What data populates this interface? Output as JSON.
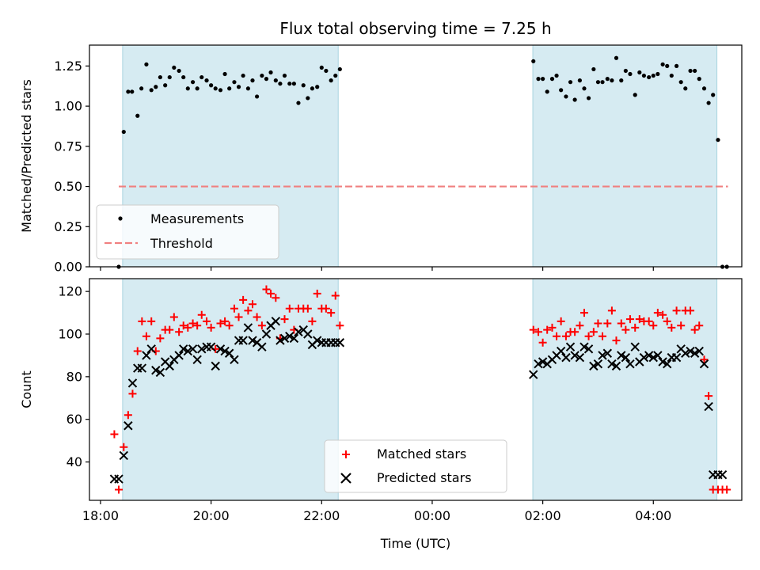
{
  "chart_data": [
    {
      "type": "scatter",
      "title": "Flux total observing time = 7.25 h",
      "xlabel": "",
      "ylabel": "Matched/Predicted stars",
      "xlim": [
        17.8,
        29.6
      ],
      "ylim": [
        0.0,
        1.38
      ],
      "yticks": [
        0.0,
        0.25,
        0.5,
        0.75,
        1.0,
        1.25
      ],
      "ytick_labels": [
        "0.00",
        "0.25",
        "0.50",
        "0.75",
        "1.00",
        "1.25"
      ],
      "xticks": [
        18,
        20,
        22,
        24,
        26,
        28
      ],
      "shaded_intervals": [
        [
          18.4,
          22.3
        ],
        [
          25.82,
          29.15
        ]
      ],
      "legend": {
        "position": "lower-left",
        "entries": [
          "Measurements",
          "Threshold"
        ]
      },
      "threshold": {
        "name": "Threshold",
        "value": 0.5,
        "x_range": [
          18.33,
          29.35
        ],
        "color": "#f08080"
      },
      "series": [
        {
          "name": "Measurements",
          "color": "#000000",
          "x": [
            18.33,
            18.42,
            18.5,
            18.57,
            18.67,
            18.74,
            18.83,
            18.92,
            19.0,
            19.08,
            19.17,
            19.25,
            19.33,
            19.42,
            19.5,
            19.58,
            19.67,
            19.75,
            19.83,
            19.92,
            20.0,
            20.08,
            20.17,
            20.25,
            20.33,
            20.42,
            20.5,
            20.58,
            20.67,
            20.75,
            20.83,
            20.92,
            21.0,
            21.08,
            21.17,
            21.25,
            21.33,
            21.42,
            21.5,
            21.58,
            21.67,
            21.75,
            21.83,
            21.92,
            22.0,
            22.08,
            22.17,
            22.25,
            22.33,
            25.83,
            25.92,
            26.0,
            26.08,
            26.17,
            26.25,
            26.33,
            26.42,
            26.5,
            26.58,
            26.67,
            26.75,
            26.83,
            26.92,
            27.0,
            27.08,
            27.17,
            27.25,
            27.33,
            27.42,
            27.5,
            27.58,
            27.67,
            27.75,
            27.83,
            27.92,
            28.0,
            28.08,
            28.17,
            28.25,
            28.33,
            28.42,
            28.5,
            28.58,
            28.67,
            28.75,
            28.83,
            28.92,
            29.0,
            29.08,
            29.17,
            29.25,
            29.33
          ],
          "y": [
            0.0,
            0.84,
            1.09,
            1.09,
            0.94,
            1.11,
            1.26,
            1.1,
            1.12,
            1.18,
            1.13,
            1.18,
            1.24,
            1.22,
            1.18,
            1.11,
            1.15,
            1.11,
            1.18,
            1.16,
            1.13,
            1.11,
            1.1,
            1.2,
            1.11,
            1.15,
            1.12,
            1.19,
            1.11,
            1.16,
            1.06,
            1.19,
            1.17,
            1.21,
            1.16,
            1.14,
            1.19,
            1.14,
            1.14,
            1.02,
            1.13,
            1.05,
            1.11,
            1.12,
            1.24,
            1.22,
            1.16,
            1.19,
            1.23,
            1.28,
            1.17,
            1.17,
            1.09,
            1.17,
            1.19,
            1.1,
            1.06,
            1.15,
            1.04,
            1.16,
            1.11,
            1.05,
            1.23,
            1.15,
            1.15,
            1.17,
            1.16,
            1.3,
            1.16,
            1.22,
            1.2,
            1.07,
            1.21,
            1.19,
            1.18,
            1.19,
            1.2,
            1.26,
            1.25,
            1.19,
            1.25,
            1.15,
            1.11,
            1.22,
            1.22,
            1.17,
            1.11,
            1.02,
            1.07,
            0.79,
            0.0,
            0.0
          ]
        }
      ]
    },
    {
      "type": "scatter",
      "title": "",
      "xlabel": "Time (UTC)",
      "ylabel": "Count",
      "xlim": [
        17.8,
        29.6
      ],
      "ylim": [
        22,
        126
      ],
      "yticks": [
        40,
        60,
        80,
        100,
        120
      ],
      "ytick_labels": [
        "40",
        "60",
        "80",
        "100",
        "120"
      ],
      "xticks": [
        18,
        20,
        22,
        24,
        26,
        28
      ],
      "xtick_labels": [
        "18:00",
        "20:00",
        "22:00",
        "00:00",
        "02:00",
        "04:00"
      ],
      "shaded_intervals": [
        [
          18.4,
          22.3
        ],
        [
          25.82,
          29.15
        ]
      ],
      "legend": {
        "position": "lower-center",
        "entries": [
          "Matched stars",
          "Predicted stars"
        ]
      },
      "series": [
        {
          "name": "Matched stars",
          "color": "#ff0000",
          "marker": "plus",
          "x": [
            18.25,
            18.33,
            18.42,
            18.5,
            18.58,
            18.67,
            18.75,
            18.83,
            18.92,
            19.0,
            19.08,
            19.17,
            19.25,
            19.33,
            19.42,
            19.5,
            19.58,
            19.67,
            19.75,
            19.83,
            19.92,
            20.0,
            20.08,
            20.17,
            20.25,
            20.33,
            20.42,
            20.5,
            20.58,
            20.67,
            20.75,
            20.83,
            20.92,
            21.0,
            21.08,
            21.17,
            21.25,
            21.33,
            21.42,
            21.5,
            21.58,
            21.67,
            21.75,
            21.83,
            21.92,
            22.0,
            22.08,
            22.17,
            22.25,
            22.33,
            25.83,
            25.92,
            26.0,
            26.08,
            26.17,
            26.25,
            26.33,
            26.42,
            26.5,
            26.58,
            26.67,
            26.75,
            26.83,
            26.92,
            27.0,
            27.08,
            27.17,
            27.25,
            27.33,
            27.42,
            27.5,
            27.58,
            27.67,
            27.75,
            27.83,
            27.92,
            28.0,
            28.08,
            28.17,
            28.25,
            28.33,
            28.42,
            28.5,
            28.58,
            28.67,
            28.75,
            28.83,
            28.92,
            29.0,
            29.08,
            29.17,
            29.25,
            29.33
          ],
          "y": [
            53,
            27,
            47,
            62,
            72,
            92,
            106,
            99,
            106,
            92,
            98,
            102,
            102,
            108,
            101,
            104,
            103,
            105,
            104,
            109,
            106,
            103,
            93,
            105,
            106,
            104,
            112,
            108,
            116,
            111,
            114,
            108,
            104,
            121,
            119,
            117,
            98,
            107,
            112,
            102,
            112,
            112,
            112,
            106,
            119,
            112,
            112,
            110,
            118,
            104,
            102,
            101,
            96,
            102,
            103,
            99,
            106,
            99,
            101,
            101,
            104,
            110,
            99,
            101,
            105,
            99,
            105,
            111,
            97,
            105,
            102,
            107,
            103,
            107,
            106,
            106,
            104,
            110,
            109,
            106,
            103,
            111,
            104,
            111,
            111,
            102,
            104,
            88,
            71,
            27,
            27,
            27,
            27
          ],
          "dense_start_note": ""
        },
        {
          "name": "Predicted stars",
          "color": "#000000",
          "marker": "x",
          "x": [
            18.25,
            18.33,
            18.42,
            18.5,
            18.58,
            18.67,
            18.75,
            18.83,
            18.92,
            19.0,
            19.08,
            19.17,
            19.25,
            19.33,
            19.42,
            19.5,
            19.58,
            19.67,
            19.75,
            19.83,
            19.92,
            20.0,
            20.08,
            20.17,
            20.25,
            20.33,
            20.42,
            20.5,
            20.58,
            20.67,
            20.75,
            20.83,
            20.92,
            21.0,
            21.08,
            21.17,
            21.25,
            21.33,
            21.42,
            21.5,
            21.58,
            21.67,
            21.75,
            21.83,
            21.92,
            22.0,
            22.08,
            22.17,
            22.25,
            22.33,
            25.83,
            25.92,
            26.0,
            26.08,
            26.17,
            26.25,
            26.33,
            26.42,
            26.5,
            26.58,
            26.67,
            26.75,
            26.83,
            26.92,
            27.0,
            27.08,
            27.17,
            27.25,
            27.33,
            27.42,
            27.5,
            27.58,
            27.67,
            27.75,
            27.83,
            27.92,
            28.0,
            28.08,
            28.17,
            28.25,
            28.33,
            28.42,
            28.5,
            28.58,
            28.67,
            28.75,
            28.83,
            28.92,
            29.0,
            29.08,
            29.17,
            29.25
          ],
          "y": [
            32,
            32,
            43,
            57,
            77,
            84,
            84,
            90,
            93,
            83,
            82,
            87,
            85,
            88,
            90,
            93,
            92,
            93,
            88,
            93,
            94,
            94,
            85,
            93,
            92,
            91,
            88,
            97,
            97,
            103,
            97,
            96,
            94,
            100,
            104,
            106,
            97,
            98,
            99,
            98,
            101,
            102,
            100,
            95,
            97,
            96,
            96,
            96,
            96,
            96,
            81,
            86,
            87,
            86,
            88,
            90,
            92,
            89,
            94,
            90,
            89,
            94,
            93,
            85,
            86,
            90,
            91,
            86,
            85,
            90,
            89,
            86,
            94,
            87,
            89,
            90,
            89,
            90,
            87,
            86,
            89,
            89,
            93,
            91,
            92,
            91,
            92,
            86,
            66,
            34,
            34,
            34
          ]
        }
      ]
    }
  ]
}
